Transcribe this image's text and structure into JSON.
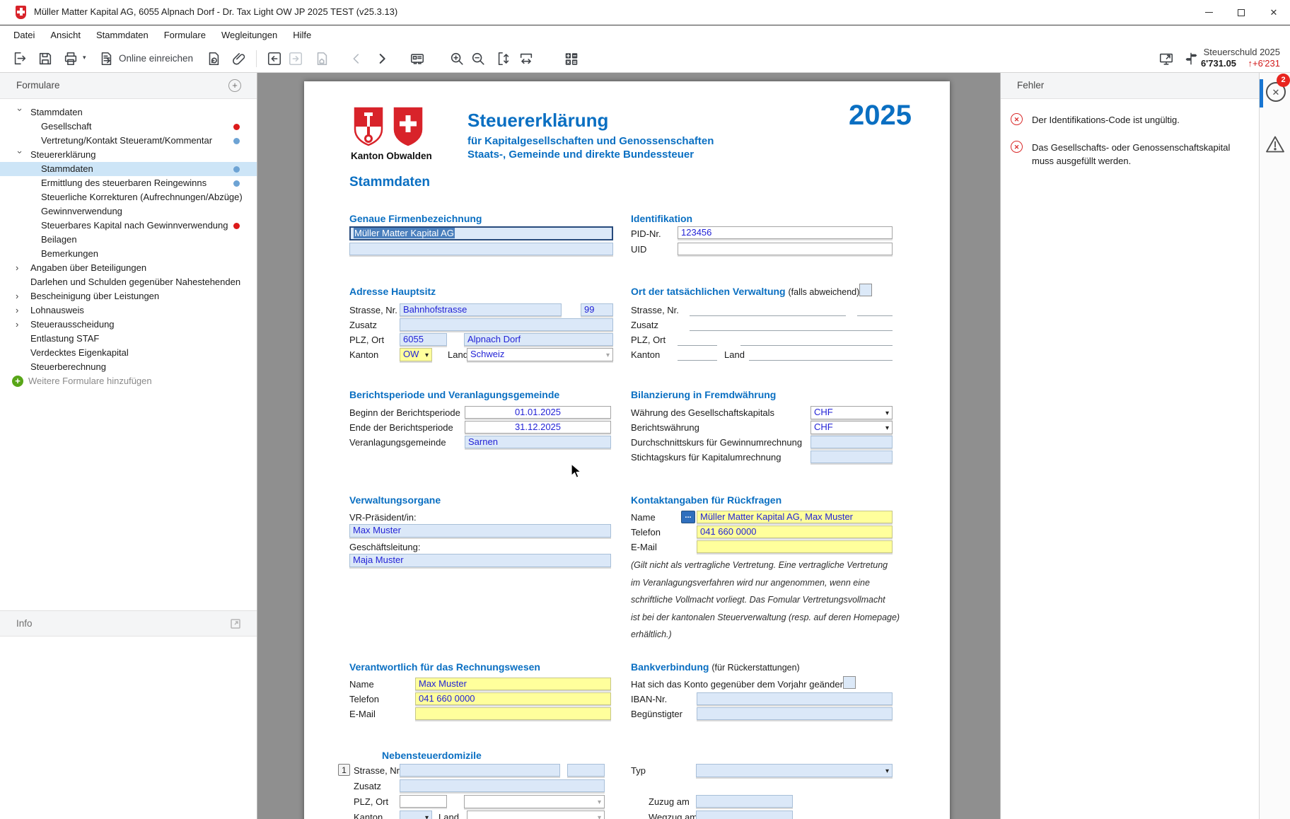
{
  "window": {
    "title": "Müller Matter Kapital AG, 6055 Alpnach Dorf - Dr. Tax Light OW JP 2025 TEST (v25.3.13)"
  },
  "icons": {
    "close": "✕",
    "caret": "▾",
    "chevron": "›",
    "x": "✕",
    "plus": "+",
    "ellipsis": "...",
    "up_arrow": "↑"
  },
  "menu": {
    "items": [
      "Datei",
      "Ansicht",
      "Stammdaten",
      "Formulare",
      "Wegleitungen",
      "Hilfe"
    ]
  },
  "toolbar": {
    "online_label": "Online einreichen",
    "steuerschuld_label": "Steuerschuld 2025",
    "steuerschuld_amount": "6'731.05",
    "steuerschuld_delta": "↑+6'231"
  },
  "sidebar": {
    "header": "Formulare",
    "items": [
      {
        "label": "Stammdaten",
        "level": 0,
        "exp": "open",
        "dot": "",
        "selected": false
      },
      {
        "label": "Gesellschaft",
        "level": 1,
        "exp": "",
        "dot": "red",
        "selected": false
      },
      {
        "label": "Vertretung/Kontakt Steueramt/Kommentar",
        "level": 1,
        "exp": "",
        "dot": "blue",
        "selected": false
      },
      {
        "label": "Steuererklärung",
        "level": 0,
        "exp": "open",
        "dot": "",
        "selected": false
      },
      {
        "label": "Stammdaten",
        "level": 1,
        "exp": "",
        "dot": "blue",
        "selected": true
      },
      {
        "label": "Ermittlung des steuerbaren Reingewinns",
        "level": 1,
        "exp": "",
        "dot": "blue",
        "selected": false
      },
      {
        "label": "Steuerliche Korrekturen (Aufrechnungen/Abzüge)",
        "level": 1,
        "exp": "",
        "dot": "",
        "selected": false
      },
      {
        "label": "Gewinnverwendung",
        "level": 1,
        "exp": "",
        "dot": "",
        "selected": false
      },
      {
        "label": "Steuerbares Kapital nach Gewinnverwendung",
        "level": 1,
        "exp": "",
        "dot": "red",
        "selected": false
      },
      {
        "label": "Beilagen",
        "level": 1,
        "exp": "",
        "dot": "",
        "selected": false
      },
      {
        "label": "Bemerkungen",
        "level": 1,
        "exp": "",
        "dot": "",
        "selected": false
      },
      {
        "label": "Angaben über Beteiligungen",
        "level": 0,
        "exp": "closed",
        "dot": "",
        "selected": false
      },
      {
        "label": "Darlehen und Schulden gegenüber Nahestehenden",
        "level": 0,
        "exp": "",
        "dot": "",
        "selected": false
      },
      {
        "label": "Bescheinigung über Leistungen",
        "level": 0,
        "exp": "closed",
        "dot": "",
        "selected": false
      },
      {
        "label": "Lohnausweis",
        "level": 0,
        "exp": "closed",
        "dot": "",
        "selected": false
      },
      {
        "label": "Steuerausscheidung",
        "level": 0,
        "exp": "closed",
        "dot": "",
        "selected": false
      },
      {
        "label": "Entlastung STAF",
        "level": 0,
        "exp": "",
        "dot": "",
        "selected": false
      },
      {
        "label": "Verdecktes Eigenkapital",
        "level": 0,
        "exp": "",
        "dot": "",
        "selected": false
      },
      {
        "label": "Steuerberechnung",
        "level": 0,
        "exp": "",
        "dot": "",
        "selected": false
      }
    ],
    "add_more_label": "Weitere Formulare hinzufügen",
    "info_header": "Info"
  },
  "errors": {
    "header": "Fehler",
    "badge": "2",
    "items": [
      "Der Identifikations-Code ist ungültig.",
      "Das Gesellschafts- oder Genossenschaftskapital muss ausgefüllt werden."
    ]
  },
  "form": {
    "header": {
      "canton_label": "Kanton Obwalden",
      "title": "Steuererklärung",
      "subtitle1": "für Kapitalgesellschaften und Genossenschaften",
      "subtitle2": "Staats-, Gemeinde und direkte Bundessteuer",
      "year": "2025",
      "page_section": "Stammdaten"
    },
    "firm": {
      "heading": "Genaue Firmenbezeichnung",
      "name_value": "Müller Matter Kapital AG"
    },
    "ident": {
      "heading": "Identifikation",
      "pid_label": "PID-Nr.",
      "pid_value": "123456",
      "uid_label": "UID"
    },
    "addr": {
      "heading": "Adresse Hauptsitz",
      "street_label": "Strasse, Nr.",
      "street_value": "Bahnhofstrasse",
      "street_no_value": "99",
      "zusatz_label": "Zusatz",
      "plz_label": "PLZ, Ort",
      "plz_value": "6055",
      "ort_value": "Alpnach Dorf",
      "kanton_label": "Kanton",
      "kanton_value": "OW",
      "land_label": "Land",
      "land_value": "Schweiz"
    },
    "verw": {
      "heading": "Ort der tatsächlichen Verwaltung",
      "note": "(falls abweichend)",
      "street_label": "Strasse, Nr.",
      "zusatz_label": "Zusatz",
      "plz_label": "PLZ, Ort",
      "kanton_label": "Kanton",
      "land_label": "Land"
    },
    "period": {
      "heading": "Berichtsperiode und Veranlagungsgemeinde",
      "begin_label": "Beginn der Berichtsperiode",
      "begin_value": "01.01.2025",
      "end_label": "Ende der Berichtsperiode",
      "end_value": "31.12.2025",
      "gemeinde_label": "Veranlagungsgemeinde",
      "gemeinde_value": "Sarnen"
    },
    "fx": {
      "heading": "Bilanzierung in Fremdwährung",
      "cap_label": "Währung des Gesellschaftskapitals",
      "cap_value": "CHF",
      "report_label": "Berichtswährung",
      "report_value": "CHF",
      "avg_label": "Durchschnittskurs für Gewinnumrechnung",
      "date_label": "Stichtagskurs für Kapitalumrechnung"
    },
    "organe": {
      "heading": "Verwaltungsorgane",
      "president_label": "VR-Präsident/in:",
      "president_value": "Max Muster",
      "gl_label": "Geschäftsleitung:",
      "gl_value": "Maja Muster"
    },
    "kontakt": {
      "heading": "Kontaktangaben für Rückfragen",
      "name_label": "Name",
      "name_value": "Müller Matter Kapital AG, Max Muster",
      "tel_label": "Telefon",
      "tel_value": "041 660 0000",
      "email_label": "E-Mail",
      "note_lines": [
        "(Gilt nicht als vertragliche Vertretung. Eine vertragliche Vertretung",
        "im Veranlagungsverfahren wird nur angenommen, wenn eine",
        "schriftliche Vollmacht vorliegt. Das Fomular Vertretungsvollmacht",
        "ist bei der kantonalen Steuerverwaltung (resp. auf deren Homepage)",
        "erhältlich.)"
      ]
    },
    "rw": {
      "heading": "Verantwortlich für das Rechnungswesen",
      "name_label": "Name",
      "name_value": "Max Muster",
      "tel_label": "Telefon",
      "tel_value": "041 660 0000",
      "email_label": "E-Mail"
    },
    "bank": {
      "heading": "Bankverbindung",
      "note": "(für Rückerstattungen)",
      "changed_label": "Hat sich das Konto gegenüber dem Vorjahr geändert?",
      "iban_label": "IBAN-Nr.",
      "benef_label": "Begünstigter"
    },
    "neben": {
      "heading": "Nebensteuerdomizile",
      "row_no": "1",
      "street_label": "Strasse, Nr.",
      "zusatz_label": "Zusatz",
      "plz_label": "PLZ, Ort",
      "kanton_label": "Kanton",
      "land_label": "Land",
      "typ_label": "Typ",
      "zuzug_label": "Zuzug am",
      "wegzug_label": "Wegzug am"
    }
  },
  "colors": {
    "accent_blue": "#0a6fc2",
    "value_blue": "#2323d6",
    "field_blue": "#dbe8f8",
    "field_yellow": "#ffff9c",
    "selected_row": "#cde5f7",
    "dot_red": "#dc1a1a",
    "dot_blue": "#6da3d4",
    "error_red": "#d92b2b",
    "badge_red": "#e8251f",
    "delta_red": "#d11a1a",
    "swiss_red": "#d8232a"
  }
}
